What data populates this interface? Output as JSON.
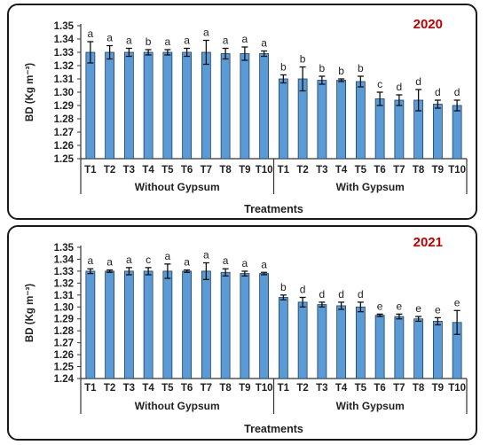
{
  "chart_data": [
    {
      "type": "bar",
      "title": "2020",
      "title_color": "#c00000",
      "ylabel": "BD (Kg m⁻³)",
      "xlabel": "Treatments",
      "ylim": [
        1.25,
        1.35
      ],
      "yticks": [
        "1.25",
        "1.26",
        "1.27",
        "1.28",
        "1.29",
        "1.30",
        "1.31",
        "1.32",
        "1.33",
        "1.34",
        "1.35"
      ],
      "categories": [
        "T1",
        "T2",
        "T3",
        "T4",
        "T5",
        "T6",
        "T7",
        "T8",
        "T9",
        "T10",
        "T1",
        "T2",
        "T3",
        "T4",
        "T5",
        "T6",
        "T7",
        "T8",
        "T9",
        "T10"
      ],
      "groups": [
        "Without Gypsum",
        "With Gypsum"
      ],
      "values": [
        1.33,
        1.33,
        1.33,
        1.33,
        1.33,
        1.33,
        1.33,
        1.329,
        1.329,
        1.329,
        1.31,
        1.31,
        1.309,
        1.309,
        1.308,
        1.295,
        1.294,
        1.294,
        1.291,
        1.29
      ],
      "errors": [
        0.008,
        0.005,
        0.003,
        0.002,
        0.002,
        0.003,
        0.009,
        0.004,
        0.005,
        0.002,
        0.003,
        0.009,
        0.003,
        0.001,
        0.004,
        0.005,
        0.004,
        0.008,
        0.003,
        0.004
      ],
      "labels": [
        "a",
        "a",
        "a",
        "b",
        "a",
        "a",
        "a",
        "a",
        "a",
        "a",
        "b",
        "b",
        "b",
        "b",
        "b",
        "c",
        "d",
        "d",
        "d",
        "d"
      ],
      "bar_color": "#5b9bd5",
      "grid": false
    },
    {
      "type": "bar",
      "title": "2021",
      "title_color": "#c00000",
      "ylabel": "BD (Kg m⁻³)",
      "xlabel": "Treatments",
      "ylim": [
        1.24,
        1.35
      ],
      "yticks": [
        "1.24",
        "1.25",
        "1.26",
        "1.27",
        "1.28",
        "1.29",
        "1.30",
        "1.31",
        "1.32",
        "1.33",
        "1.34",
        "1.35"
      ],
      "categories": [
        "T1",
        "T2",
        "T3",
        "T4",
        "T5",
        "T6",
        "T7",
        "T8",
        "T9",
        "T10",
        "T1",
        "T2",
        "T3",
        "T4",
        "T5",
        "T6",
        "T7",
        "T8",
        "T9",
        "T10"
      ],
      "groups": [
        "Without Gypsum",
        "With Gypsum"
      ],
      "values": [
        1.33,
        1.33,
        1.33,
        1.33,
        1.33,
        1.33,
        1.33,
        1.329,
        1.328,
        1.328,
        1.308,
        1.304,
        1.302,
        1.301,
        1.3,
        1.293,
        1.292,
        1.29,
        1.288,
        1.287
      ],
      "errors": [
        0.002,
        0.001,
        0.003,
        0.003,
        0.006,
        0.001,
        0.007,
        0.003,
        0.002,
        0.001,
        0.002,
        0.004,
        0.002,
        0.003,
        0.004,
        0.001,
        0.002,
        0.002,
        0.003,
        0.01
      ],
      "labels": [
        "a",
        "a",
        "a",
        "c",
        "a",
        "a",
        "a",
        "a",
        "a",
        "a",
        "b",
        "d",
        "d",
        "d",
        "d",
        "e",
        "e",
        "e",
        "e",
        "e"
      ],
      "bar_color": "#5b9bd5",
      "grid": false
    }
  ]
}
